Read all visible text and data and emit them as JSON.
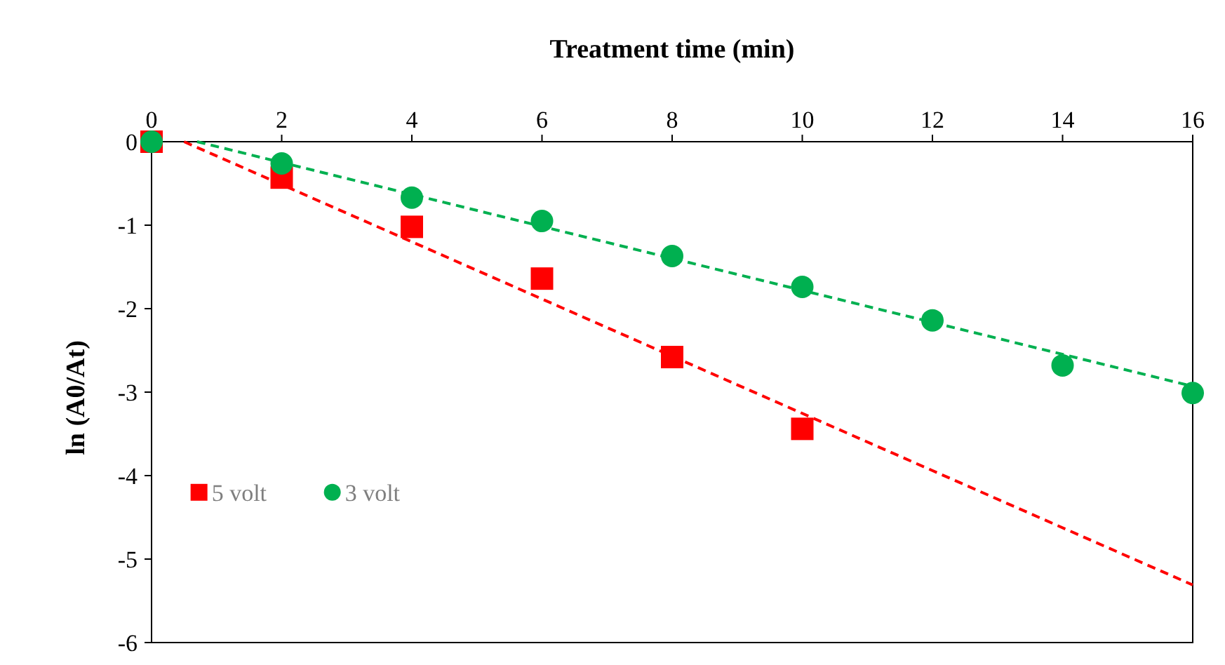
{
  "chart_data": {
    "type": "scatter",
    "xlabel": "Treatment time (min)",
    "ylabel": "ln (A0/At)",
    "xlim": [
      0,
      16
    ],
    "xticks": [
      0,
      2,
      4,
      6,
      8,
      10,
      12,
      14,
      16
    ],
    "ylim": [
      -6,
      0
    ],
    "yticks": [
      -6,
      -5,
      -4,
      -3,
      -2,
      -1,
      0
    ],
    "grid": false,
    "legend": "left",
    "series": [
      {
        "name": "5 volt",
        "color": "#ff0000",
        "marker": "square",
        "x": [
          0,
          2,
          4,
          6,
          8,
          10
        ],
        "values": [
          0,
          -0.43,
          -1.02,
          -1.64,
          -2.58,
          -3.44
        ]
      },
      {
        "name": "3 volt",
        "color": "#00b050",
        "marker": "circle",
        "x": [
          0,
          2,
          4,
          6,
          8,
          10,
          12,
          14,
          16
        ],
        "values": [
          0,
          -0.26,
          -0.67,
          -0.95,
          -1.37,
          -1.74,
          -2.14,
          -2.68,
          -3.01
        ]
      },
      {
        "type": "line",
        "color": "#ff0000",
        "line_style": "dashed",
        "marker": "none",
        "x": [
          0.5,
          16
        ],
        "values": [
          0,
          -5.31
        ]
      },
      {
        "type": "line",
        "color": "#00b050",
        "line_style": "dashed",
        "marker": "none",
        "x": [
          0.7,
          16
        ],
        "values": [
          0,
          -2.93
        ]
      }
    ]
  }
}
